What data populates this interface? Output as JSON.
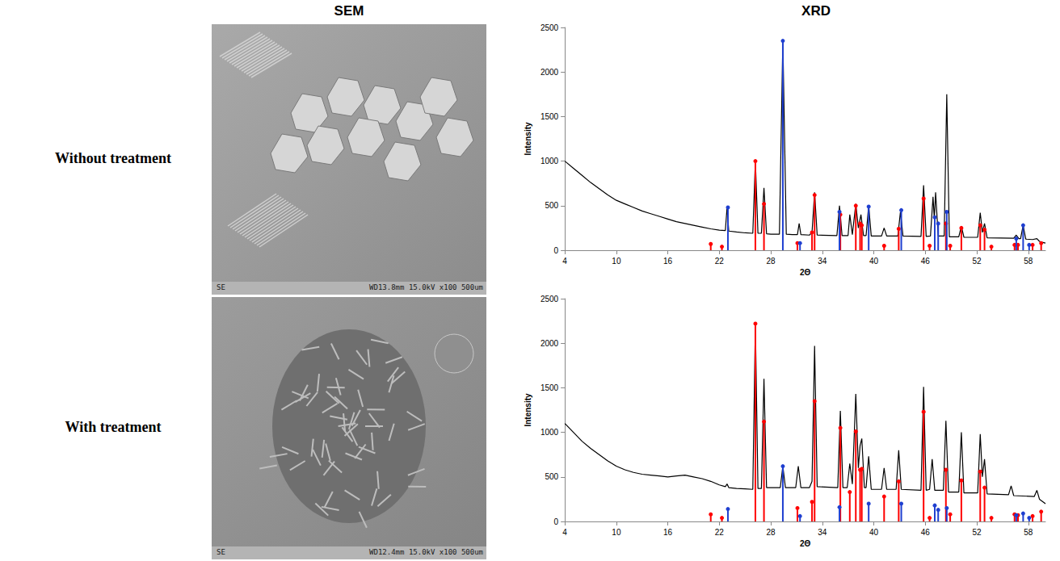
{
  "figure": {
    "column_heads": [
      "SEM",
      "XRD"
    ],
    "row_labels": [
      "Without treatment",
      "With treatment"
    ],
    "sem_images": [
      {
        "labels": [
          "SE",
          "WD13.8mm 15.0kV x100 500um"
        ]
      },
      {
        "labels": [
          "SE",
          "WD12.4mm 15.0kV x100 500um"
        ]
      }
    ]
  },
  "chart_data": [
    {
      "type": "line",
      "x_label": "2Θ",
      "y_label": "Intensity",
      "xlim": [
        4,
        60
      ],
      "xticks": [
        4,
        10,
        16,
        22,
        28,
        34,
        40,
        46,
        52,
        58
      ],
      "ylim": [
        0,
        2500
      ],
      "yticks": [
        0,
        500,
        1000,
        1500,
        2000,
        2500
      ],
      "grid": false,
      "series": [
        {
          "type": "line",
          "color": "#000000",
          "x": [
            4,
            5,
            6,
            7,
            8,
            9,
            10,
            11,
            12,
            13,
            14,
            15,
            16,
            17,
            18,
            19,
            20,
            21,
            22,
            22.7,
            22.9,
            23.1,
            24,
            25,
            25.9,
            26.2,
            26.5,
            26.9,
            27.2,
            27.5,
            28,
            29.0,
            29.4,
            29.8,
            30.5,
            31.1,
            31.3,
            31.5,
            32.5,
            32.8,
            33.1,
            33.4,
            35.7,
            36.0,
            36.3,
            37.0,
            37.2,
            37.5,
            37.9,
            38.2,
            38.5,
            38.8,
            39.1,
            39.4,
            39.7,
            40.9,
            41.2,
            41.5,
            42.8,
            43.1,
            43.4,
            45.5,
            45.8,
            46.1,
            46.6,
            46.9,
            47.05,
            47.2,
            47.5,
            48.2,
            48.5,
            48.8,
            49.9,
            50.2,
            50.5,
            52.1,
            52.4,
            52.65,
            52.9,
            53.2,
            56.3,
            56.6,
            56.9,
            57.1,
            57.4,
            57.7,
            58.5,
            59,
            59.3,
            59.6,
            60
          ],
          "values": [
            1000,
            920,
            840,
            760,
            690,
            620,
            560,
            520,
            480,
            440,
            410,
            380,
            350,
            320,
            300,
            280,
            260,
            240,
            225,
            220,
            480,
            215,
            205,
            195,
            190,
            1000,
            190,
            190,
            700,
            185,
            180,
            180,
            2350,
            180,
            175,
            175,
            300,
            175,
            170,
            200,
            650,
            170,
            165,
            500,
            165,
            165,
            400,
            175,
            520,
            250,
            400,
            165,
            165,
            500,
            160,
            160,
            250,
            160,
            160,
            430,
            160,
            155,
            730,
            155,
            160,
            600,
            350,
            650,
            160,
            160,
            1750,
            150,
            150,
            270,
            145,
            145,
            420,
            200,
            300,
            140,
            135,
            170,
            130,
            130,
            280,
            125,
            120,
            130,
            100,
            90,
            80
          ]
        },
        {
          "type": "stick",
          "color": "#ff0000",
          "marker": "circle",
          "x": [
            21,
            22.3,
            26.2,
            27.2,
            31.1,
            32.8,
            33.1,
            36.1,
            37.9,
            38.4,
            38.6,
            41.2,
            42.9,
            45.8,
            46.5,
            48.4,
            48.9,
            50.2,
            52.4,
            52.9,
            53.7,
            56.4,
            56.8,
            58.5,
            59.5
          ],
          "values": [
            70,
            40,
            1000,
            520,
            80,
            200,
            620,
            400,
            500,
            300,
            280,
            50,
            240,
            580,
            50,
            300,
            50,
            250,
            280,
            230,
            40,
            60,
            60,
            60,
            80
          ]
        },
        {
          "type": "stick",
          "color": "#1f3fd0",
          "marker": "circle",
          "x": [
            23,
            29.4,
            31.4,
            36,
            39.4,
            43.2,
            47.1,
            47.5,
            48.5,
            56.6,
            57.4,
            58.1
          ],
          "values": [
            480,
            2350,
            80,
            430,
            490,
            450,
            370,
            300,
            430,
            130,
            280,
            60
          ]
        }
      ]
    },
    {
      "type": "line",
      "x_label": "2Θ",
      "y_label": "Intensity",
      "xlim": [
        4,
        60
      ],
      "xticks": [
        4,
        10,
        16,
        22,
        28,
        34,
        40,
        46,
        52,
        58
      ],
      "ylim": [
        0,
        2500
      ],
      "yticks": [
        0,
        500,
        1000,
        1500,
        2000,
        2500
      ],
      "grid": false,
      "series": [
        {
          "type": "line",
          "color": "#000000",
          "x": [
            4,
            5,
            6,
            7,
            8,
            9,
            10,
            11,
            12,
            13,
            14,
            15,
            16,
            17,
            18,
            19,
            20,
            21,
            22,
            22.7,
            22.9,
            23.1,
            24,
            25,
            25.9,
            26.2,
            26.5,
            26.9,
            27.2,
            27.5,
            28,
            29.1,
            29.4,
            29.7,
            30.9,
            31.2,
            31.5,
            32.5,
            32.8,
            33.1,
            33.4,
            35.8,
            36.1,
            36.4,
            36.9,
            37.2,
            37.5,
            37.9,
            38.2,
            38.4,
            38.6,
            38.9,
            39.1,
            39.4,
            39.7,
            40.9,
            41.2,
            41.5,
            42.6,
            42.9,
            43.2,
            45.5,
            45.8,
            46.1,
            46.5,
            46.8,
            47.1,
            48.1,
            48.4,
            48.7,
            49.9,
            50.2,
            50.5,
            52.1,
            52.4,
            52.65,
            52.9,
            53.2,
            55.7,
            56,
            56.3,
            58.7,
            59,
            59.3,
            60
          ],
          "values": [
            1100,
            1000,
            900,
            820,
            750,
            680,
            620,
            580,
            550,
            530,
            520,
            510,
            500,
            510,
            520,
            500,
            480,
            450,
            410,
            390,
            420,
            380,
            370,
            365,
            360,
            2200,
            370,
            370,
            1600,
            380,
            380,
            380,
            620,
            380,
            380,
            620,
            380,
            380,
            450,
            1970,
            390,
            380,
            1240,
            380,
            380,
            650,
            420,
            1430,
            600,
            850,
            930,
            380,
            380,
            730,
            360,
            360,
            600,
            360,
            360,
            800,
            360,
            350,
            1510,
            350,
            360,
            700,
            350,
            350,
            1130,
            330,
            330,
            1000,
            320,
            320,
            980,
            500,
            700,
            310,
            300,
            400,
            290,
            280,
            350,
            250,
            200
          ]
        },
        {
          "type": "stick",
          "color": "#ff0000",
          "marker": "circle",
          "x": [
            21,
            22.3,
            26.2,
            27.2,
            31.1,
            32.8,
            33.1,
            36.1,
            37.2,
            37.9,
            38.4,
            38.6,
            41.2,
            42.9,
            45.8,
            46.5,
            48.4,
            48.9,
            50.2,
            52.4,
            52.9,
            53.7,
            56.4,
            56.8,
            58.5,
            59.5
          ],
          "values": [
            80,
            40,
            2220,
            1120,
            150,
            220,
            1350,
            1050,
            330,
            1010,
            580,
            590,
            280,
            450,
            1230,
            40,
            580,
            80,
            460,
            560,
            380,
            40,
            80,
            70,
            60,
            110
          ]
        },
        {
          "type": "stick",
          "color": "#1f3fd0",
          "marker": "circle",
          "x": [
            23,
            29.4,
            31.4,
            36,
            39.4,
            43.2,
            47.1,
            47.5,
            48.5,
            56.6,
            57.4,
            58.1
          ],
          "values": [
            140,
            620,
            60,
            160,
            200,
            200,
            180,
            130,
            150,
            70,
            90,
            40
          ]
        }
      ]
    }
  ]
}
